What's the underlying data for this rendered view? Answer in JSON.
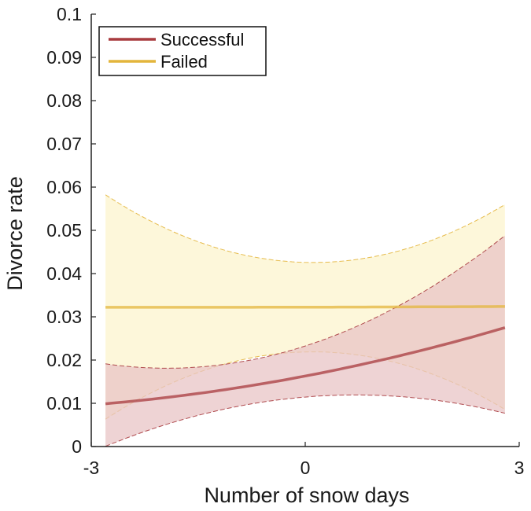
{
  "chart_data": {
    "type": "line",
    "xlabel": "Number of snow days",
    "ylabel": "Divorce rate",
    "xlim": [
      -3,
      3
    ],
    "ylim": [
      0,
      0.1
    ],
    "xticks": [
      "-3",
      "0",
      "3"
    ],
    "yticks": [
      "0",
      "0.01",
      "0.02",
      "0.03",
      "0.04",
      "0.05",
      "0.06",
      "0.07",
      "0.08",
      "0.09",
      "0.1"
    ],
    "grid": false,
    "legend_position": "top-left",
    "x": [
      -2.8,
      -2.1,
      -1.4,
      -0.7,
      0,
      0.7,
      1.4,
      2.1,
      2.8
    ],
    "series": [
      {
        "name": "Successful",
        "color": "#a83b3f",
        "fill_color": "#e8c4c6",
        "values": [
          0.0098,
          0.0111,
          0.0126,
          0.0143,
          0.0163,
          0.0186,
          0.0212,
          0.0242,
          0.0276
        ],
        "lower": [
          0.0007,
          0.0039,
          0.0071,
          0.0098,
          0.0113,
          0.0122,
          0.0121,
          0.0105,
          0.007
        ],
        "upper": [
          0.0186,
          0.0187,
          0.019,
          0.0203,
          0.0227,
          0.027,
          0.0336,
          0.041,
          0.0485
        ]
      },
      {
        "name": "Failed",
        "color": "#e3b53c",
        "fill_color": "#fdf6d4",
        "values": [
          0.0322,
          0.0322,
          0.0322,
          0.0322,
          0.0322,
          0.0323,
          0.0323,
          0.0323,
          0.0324
        ],
        "lower": [
          0.0069,
          0.0122,
          0.0172,
          0.0209,
          0.0224,
          0.0218,
          0.0186,
          0.0138,
          0.009
        ],
        "upper": [
          0.0578,
          0.0522,
          0.0472,
          0.0435,
          0.042,
          0.0428,
          0.046,
          0.0508,
          0.0554
        ]
      }
    ]
  }
}
